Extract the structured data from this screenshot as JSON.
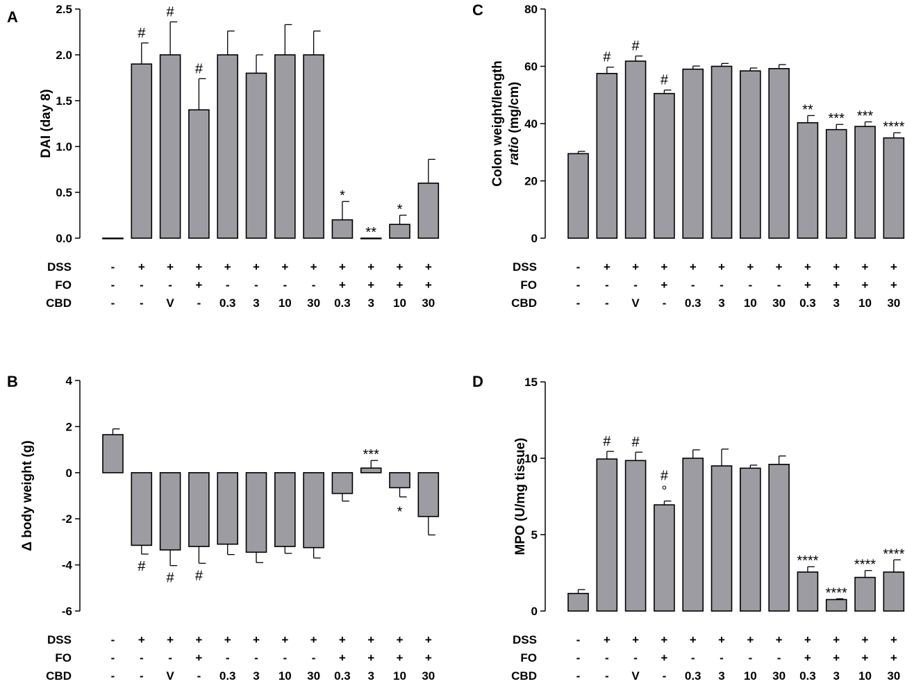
{
  "colors": {
    "bar_fill": "#9d9ca3",
    "bar_stroke": "#000000",
    "axis": "#000000"
  },
  "conditions": {
    "row_labels": [
      "DSS",
      "FO",
      "CBD"
    ],
    "DSS": [
      "-",
      "+",
      "+",
      "+",
      "+",
      "+",
      "+",
      "+",
      "+",
      "+",
      "+",
      "+"
    ],
    "FO": [
      "-",
      "-",
      "-",
      "+",
      "-",
      "-",
      "-",
      "-",
      "+",
      "+",
      "+",
      "+"
    ],
    "CBD": [
      "-",
      "-",
      "V",
      "-",
      "0.3",
      "3",
      "10",
      "30",
      "0.3",
      "3",
      "10",
      "30"
    ]
  },
  "chart_data": [
    {
      "panel": "A",
      "type": "bar",
      "ylabel": "DAI (day 8)",
      "ylim": [
        0,
        2.5
      ],
      "yticks": [
        "0.0",
        "0.5",
        "1.0",
        "1.5",
        "2.0",
        "2.5"
      ],
      "values": [
        0,
        1.9,
        2.0,
        1.4,
        2.0,
        1.8,
        2.0,
        2.0,
        0.2,
        0.0,
        0.15,
        0.6
      ],
      "errors": [
        0,
        0.23,
        0.36,
        0.34,
        0.26,
        0.2,
        0.33,
        0.26,
        0.2,
        0.0,
        0.1,
        0.26
      ],
      "annotations_above": [
        "",
        "#",
        "#",
        "#",
        "",
        "",
        "",
        "",
        "*",
        "**",
        "*",
        ""
      ],
      "annotations_below": [
        "",
        "",
        "",
        "",
        "",
        "",
        "",
        "",
        "",
        "",
        "",
        ""
      ]
    },
    {
      "panel": "B",
      "type": "bar",
      "ylabel": "Δ body weight (g)",
      "ylim": [
        -6,
        4
      ],
      "yticks": [
        "-6",
        "-4",
        "-2",
        "0",
        "2",
        "4"
      ],
      "values": [
        1.65,
        -3.15,
        -3.35,
        -3.2,
        -3.1,
        -3.45,
        -3.2,
        -3.25,
        -0.9,
        0.2,
        -0.65,
        -1.9
      ],
      "errors": [
        0.25,
        0.38,
        0.68,
        0.73,
        0.45,
        0.45,
        0.3,
        0.45,
        0.33,
        0.33,
        0.4,
        0.8
      ],
      "annotations_above": [
        "",
        "",
        "",
        "",
        "",
        "",
        "",
        "",
        "",
        "***",
        "",
        ""
      ],
      "annotations_below": [
        "",
        "#",
        "#",
        "#",
        "",
        "",
        "",
        "",
        "",
        "",
        "*",
        ""
      ]
    },
    {
      "panel": "C",
      "type": "bar",
      "ylabel": "Colon weight/length ratio (mg/cm)",
      "ylabel_line1": "Colon weight/length",
      "ylabel_line2_italic": "ratio",
      "ylabel_line2_rest": " (mg/cm)",
      "ylim": [
        0,
        80
      ],
      "yticks": [
        "0",
        "20",
        "40",
        "60",
        "80"
      ],
      "values": [
        29.5,
        57.5,
        61.8,
        50.5,
        59,
        60,
        58.4,
        59.2,
        40.3,
        37.9,
        39,
        35
      ],
      "errors": [
        0.8,
        2.2,
        1.8,
        1.2,
        1.1,
        1.0,
        1.0,
        1.4,
        2.5,
        1.8,
        1.6,
        1.8
      ],
      "annotations_above": [
        "",
        "#",
        "#",
        "#",
        "",
        "",
        "",
        "",
        "**",
        "***",
        "***",
        "****"
      ],
      "annotations_below": [
        "",
        "",
        "",
        "",
        "",
        "",
        "",
        "",
        "",
        "",
        "",
        ""
      ]
    },
    {
      "panel": "D",
      "type": "bar",
      "ylabel": "MPO (U/mg tissue)",
      "ylim": [
        0,
        15
      ],
      "yticks": [
        "0",
        "5",
        "10",
        "15"
      ],
      "values": [
        1.15,
        9.95,
        9.85,
        6.95,
        10.0,
        9.5,
        9.35,
        9.6,
        2.55,
        0.75,
        2.2,
        2.55
      ],
      "errors": [
        0.25,
        0.5,
        0.55,
        0.25,
        0.55,
        1.1,
        0.2,
        0.55,
        0.35,
        0.05,
        0.45,
        0.8
      ],
      "annotations_above": [
        "",
        "#",
        "#",
        "#°",
        "",
        "",
        "",
        "",
        "****",
        "****",
        "****",
        "****"
      ],
      "annotations_below": [
        "",
        "",
        "",
        "",
        "",
        "",
        "",
        "",
        "",
        "",
        "",
        ""
      ]
    }
  ]
}
